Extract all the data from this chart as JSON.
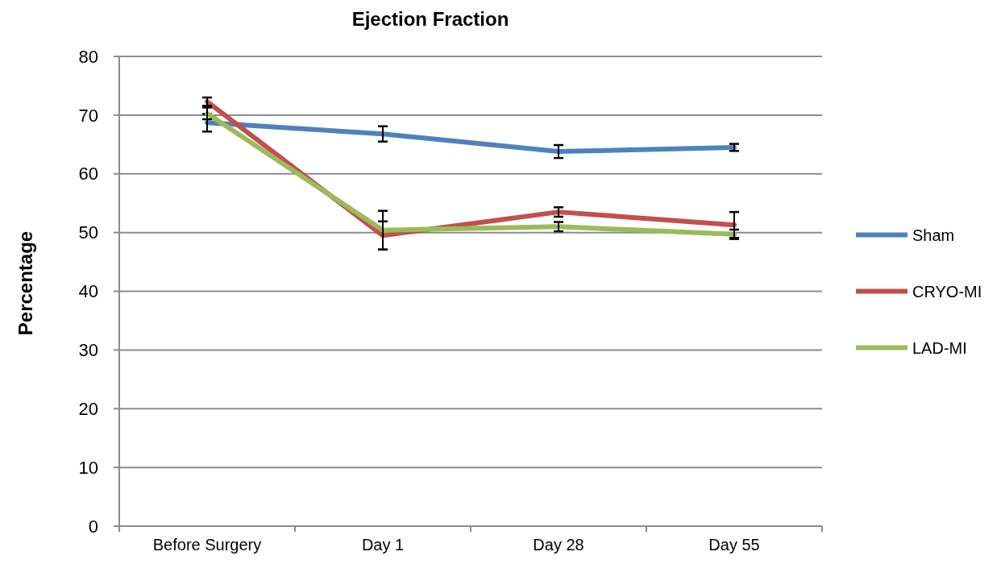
{
  "chart_data": {
    "type": "line",
    "title": "Ejection Fraction",
    "ylabel": "Percentage",
    "categories": [
      "Before Surgery",
      "Day 1",
      "Day 28",
      "Day 55"
    ],
    "series": [
      {
        "name": "Sham",
        "color": "#4f81bd",
        "values": [
          68.7,
          66.8,
          63.8,
          64.5
        ],
        "errors": [
          1.5,
          1.3,
          1.1,
          0.6
        ]
      },
      {
        "name": "CRYO-MI",
        "color": "#c0504d",
        "values": [
          72.3,
          49.5,
          53.5,
          51.3
        ],
        "errors": [
          0.7,
          2.4,
          0.8,
          2.2
        ]
      },
      {
        "name": "LAD-MI",
        "color": "#9bbb59",
        "values": [
          70.3,
          50.4,
          51.0,
          49.7
        ],
        "errors": [
          1.0,
          3.3,
          0.8,
          0.8
        ]
      }
    ],
    "ylim": [
      0,
      80
    ],
    "yticks": [
      0,
      10,
      20,
      30,
      40,
      50,
      60,
      70,
      80
    ],
    "grid": "y",
    "legend": "right",
    "marker": "none",
    "line_style": "solid"
  }
}
